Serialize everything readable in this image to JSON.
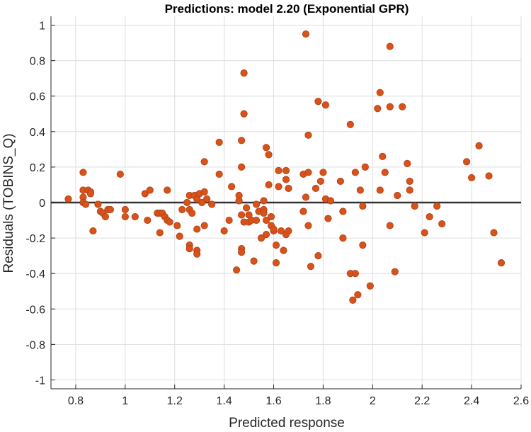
{
  "chart_data": {
    "type": "scatter",
    "title": "Predictions: model 2.20 (Exponential GPR)",
    "xlabel": "Predicted response",
    "ylabel": "Residuals (TOBINS_Q)",
    "xlim": [
      0.7,
      2.6
    ],
    "ylim": [
      -1.05,
      1.05
    ],
    "x_ticks": [
      0.8,
      1,
      1.2,
      1.4,
      1.6,
      1.8,
      2,
      2.2,
      2.4,
      2.6
    ],
    "y_ticks": [
      -1,
      -0.8,
      -0.6,
      -0.4,
      -0.2,
      0,
      0.2,
      0.4,
      0.6,
      0.8,
      1
    ],
    "grid": true,
    "reference_line_y": 0,
    "colors": {
      "points": "#d95319",
      "point_edge": "#b5421a",
      "zero_line": "#333333"
    },
    "points": [
      {
        "x": 0.77,
        "y": 0.02
      },
      {
        "x": 0.83,
        "y": 0.17
      },
      {
        "x": 0.83,
        "y": 0.07
      },
      {
        "x": 0.83,
        "y": 0.03
      },
      {
        "x": 0.83,
        "y": 0.0
      },
      {
        "x": 0.84,
        "y": -0.01
      },
      {
        "x": 0.85,
        "y": 0.07
      },
      {
        "x": 0.86,
        "y": 0.06
      },
      {
        "x": 0.86,
        "y": 0.05
      },
      {
        "x": 0.87,
        "y": -0.16
      },
      {
        "x": 0.89,
        "y": -0.01
      },
      {
        "x": 0.9,
        "y": -0.05
      },
      {
        "x": 0.91,
        "y": -0.06
      },
      {
        "x": 0.92,
        "y": -0.08
      },
      {
        "x": 0.93,
        "y": -0.04
      },
      {
        "x": 0.94,
        "y": -0.04
      },
      {
        "x": 0.98,
        "y": 0.16
      },
      {
        "x": 1.0,
        "y": -0.04
      },
      {
        "x": 1.0,
        "y": -0.08
      },
      {
        "x": 1.04,
        "y": -0.08
      },
      {
        "x": 1.08,
        "y": 0.05
      },
      {
        "x": 1.09,
        "y": -0.1
      },
      {
        "x": 1.1,
        "y": 0.07
      },
      {
        "x": 1.13,
        "y": -0.06
      },
      {
        "x": 1.14,
        "y": -0.17
      },
      {
        "x": 1.14,
        "y": -0.06
      },
      {
        "x": 1.15,
        "y": -0.06
      },
      {
        "x": 1.16,
        "y": -0.08
      },
      {
        "x": 1.17,
        "y": 0.07
      },
      {
        "x": 1.17,
        "y": -0.1
      },
      {
        "x": 1.18,
        "y": -0.11
      },
      {
        "x": 1.21,
        "y": -0.13
      },
      {
        "x": 1.22,
        "y": -0.19
      },
      {
        "x": 1.23,
        "y": -0.04
      },
      {
        "x": 1.25,
        "y": 0.0
      },
      {
        "x": 1.26,
        "y": -0.24
      },
      {
        "x": 1.26,
        "y": -0.26
      },
      {
        "x": 1.26,
        "y": 0.04
      },
      {
        "x": 1.26,
        "y": -0.04
      },
      {
        "x": 1.27,
        "y": -0.06
      },
      {
        "x": 1.28,
        "y": 0.04
      },
      {
        "x": 1.29,
        "y": 0.02
      },
      {
        "x": 1.29,
        "y": -0.15
      },
      {
        "x": 1.29,
        "y": -0.27
      },
      {
        "x": 1.29,
        "y": -0.29
      },
      {
        "x": 1.3,
        "y": 0.05
      },
      {
        "x": 1.31,
        "y": 0.0
      },
      {
        "x": 1.32,
        "y": 0.23
      },
      {
        "x": 1.32,
        "y": 0.06
      },
      {
        "x": 1.32,
        "y": -0.13
      },
      {
        "x": 1.33,
        "y": 0.02
      },
      {
        "x": 1.35,
        "y": -0.01
      },
      {
        "x": 1.38,
        "y": 0.16
      },
      {
        "x": 1.38,
        "y": 0.34
      },
      {
        "x": 1.4,
        "y": -0.16
      },
      {
        "x": 1.42,
        "y": -0.1
      },
      {
        "x": 1.43,
        "y": 0.09
      },
      {
        "x": 1.45,
        "y": -0.38
      },
      {
        "x": 1.46,
        "y": 0.04
      },
      {
        "x": 1.46,
        "y": 0.01
      },
      {
        "x": 1.47,
        "y": 0.35
      },
      {
        "x": 1.47,
        "y": 0.2
      },
      {
        "x": 1.47,
        "y": -0.07
      },
      {
        "x": 1.47,
        "y": -0.26
      },
      {
        "x": 1.47,
        "y": -0.28
      },
      {
        "x": 1.48,
        "y": 0.73
      },
      {
        "x": 1.48,
        "y": 0.5
      },
      {
        "x": 1.48,
        "y": -0.11
      },
      {
        "x": 1.49,
        "y": -0.03
      },
      {
        "x": 1.5,
        "y": -0.07
      },
      {
        "x": 1.5,
        "y": -0.11
      },
      {
        "x": 1.51,
        "y": -0.1
      },
      {
        "x": 1.52,
        "y": -0.33
      },
      {
        "x": 1.53,
        "y": -0.01
      },
      {
        "x": 1.53,
        "y": -0.1
      },
      {
        "x": 1.54,
        "y": -0.05
      },
      {
        "x": 1.55,
        "y": -0.2
      },
      {
        "x": 1.56,
        "y": -0.04
      },
      {
        "x": 1.56,
        "y": -0.06
      },
      {
        "x": 1.56,
        "y": 0.01
      },
      {
        "x": 1.57,
        "y": 0.31
      },
      {
        "x": 1.57,
        "y": -0.1
      },
      {
        "x": 1.57,
        "y": -0.18
      },
      {
        "x": 1.58,
        "y": 0.27
      },
      {
        "x": 1.58,
        "y": 0.1
      },
      {
        "x": 1.59,
        "y": -0.08
      },
      {
        "x": 1.59,
        "y": -0.13
      },
      {
        "x": 1.6,
        "y": -0.16
      },
      {
        "x": 1.6,
        "y": -0.15
      },
      {
        "x": 1.61,
        "y": -0.24
      },
      {
        "x": 1.61,
        "y": -0.34
      },
      {
        "x": 1.62,
        "y": 0.18
      },
      {
        "x": 1.62,
        "y": 0.09
      },
      {
        "x": 1.63,
        "y": -0.16
      },
      {
        "x": 1.64,
        "y": -0.27
      },
      {
        "x": 1.65,
        "y": 0.18
      },
      {
        "x": 1.65,
        "y": 0.13
      },
      {
        "x": 1.65,
        "y": -0.18
      },
      {
        "x": 1.66,
        "y": -0.16
      },
      {
        "x": 1.66,
        "y": 0.08
      },
      {
        "x": 1.72,
        "y": 0.16
      },
      {
        "x": 1.72,
        "y": -0.05
      },
      {
        "x": 1.73,
        "y": 0.95
      },
      {
        "x": 1.73,
        "y": 0.03
      },
      {
        "x": 1.74,
        "y": 0.38
      },
      {
        "x": 1.74,
        "y": 0.17
      },
      {
        "x": 1.74,
        "y": -0.13
      },
      {
        "x": 1.75,
        "y": -0.36
      },
      {
        "x": 1.77,
        "y": 0.08
      },
      {
        "x": 1.78,
        "y": 0.57
      },
      {
        "x": 1.78,
        "y": -0.3
      },
      {
        "x": 1.79,
        "y": 0.12
      },
      {
        "x": 1.8,
        "y": 0.17
      },
      {
        "x": 1.81,
        "y": 0.55
      },
      {
        "x": 1.81,
        "y": 0.02
      },
      {
        "x": 1.82,
        "y": -0.09
      },
      {
        "x": 1.83,
        "y": 0.01
      },
      {
        "x": 1.87,
        "y": 0.12
      },
      {
        "x": 1.88,
        "y": -0.05
      },
      {
        "x": 1.88,
        "y": -0.2
      },
      {
        "x": 1.91,
        "y": 0.44
      },
      {
        "x": 1.91,
        "y": -0.4
      },
      {
        "x": 1.92,
        "y": -0.55
      },
      {
        "x": 1.93,
        "y": 0.17
      },
      {
        "x": 1.93,
        "y": -0.4
      },
      {
        "x": 1.94,
        "y": -0.52
      },
      {
        "x": 1.95,
        "y": 0.07
      },
      {
        "x": 1.96,
        "y": -0.24
      },
      {
        "x": 1.96,
        "y": -0.02
      },
      {
        "x": 1.97,
        "y": 0.2
      },
      {
        "x": 1.99,
        "y": -0.47
      },
      {
        "x": 2.02,
        "y": 0.53
      },
      {
        "x": 2.03,
        "y": 0.62
      },
      {
        "x": 2.03,
        "y": 0.07
      },
      {
        "x": 2.04,
        "y": 0.26
      },
      {
        "x": 2.05,
        "y": 0.17
      },
      {
        "x": 2.07,
        "y": 0.88
      },
      {
        "x": 2.07,
        "y": 0.54
      },
      {
        "x": 2.07,
        "y": -0.13
      },
      {
        "x": 2.09,
        "y": -0.39
      },
      {
        "x": 2.1,
        "y": 0.04
      },
      {
        "x": 2.12,
        "y": 0.54
      },
      {
        "x": 2.14,
        "y": 0.22
      },
      {
        "x": 2.15,
        "y": 0.12
      },
      {
        "x": 2.15,
        "y": 0.07
      },
      {
        "x": 2.17,
        "y": -0.02
      },
      {
        "x": 2.21,
        "y": -0.17
      },
      {
        "x": 2.23,
        "y": -0.08
      },
      {
        "x": 2.26,
        "y": -0.02
      },
      {
        "x": 2.28,
        "y": -0.12
      },
      {
        "x": 2.38,
        "y": 0.23
      },
      {
        "x": 2.4,
        "y": 0.14
      },
      {
        "x": 2.43,
        "y": 0.32
      },
      {
        "x": 2.47,
        "y": 0.15
      },
      {
        "x": 2.49,
        "y": -0.17
      },
      {
        "x": 2.52,
        "y": -0.34
      }
    ]
  }
}
